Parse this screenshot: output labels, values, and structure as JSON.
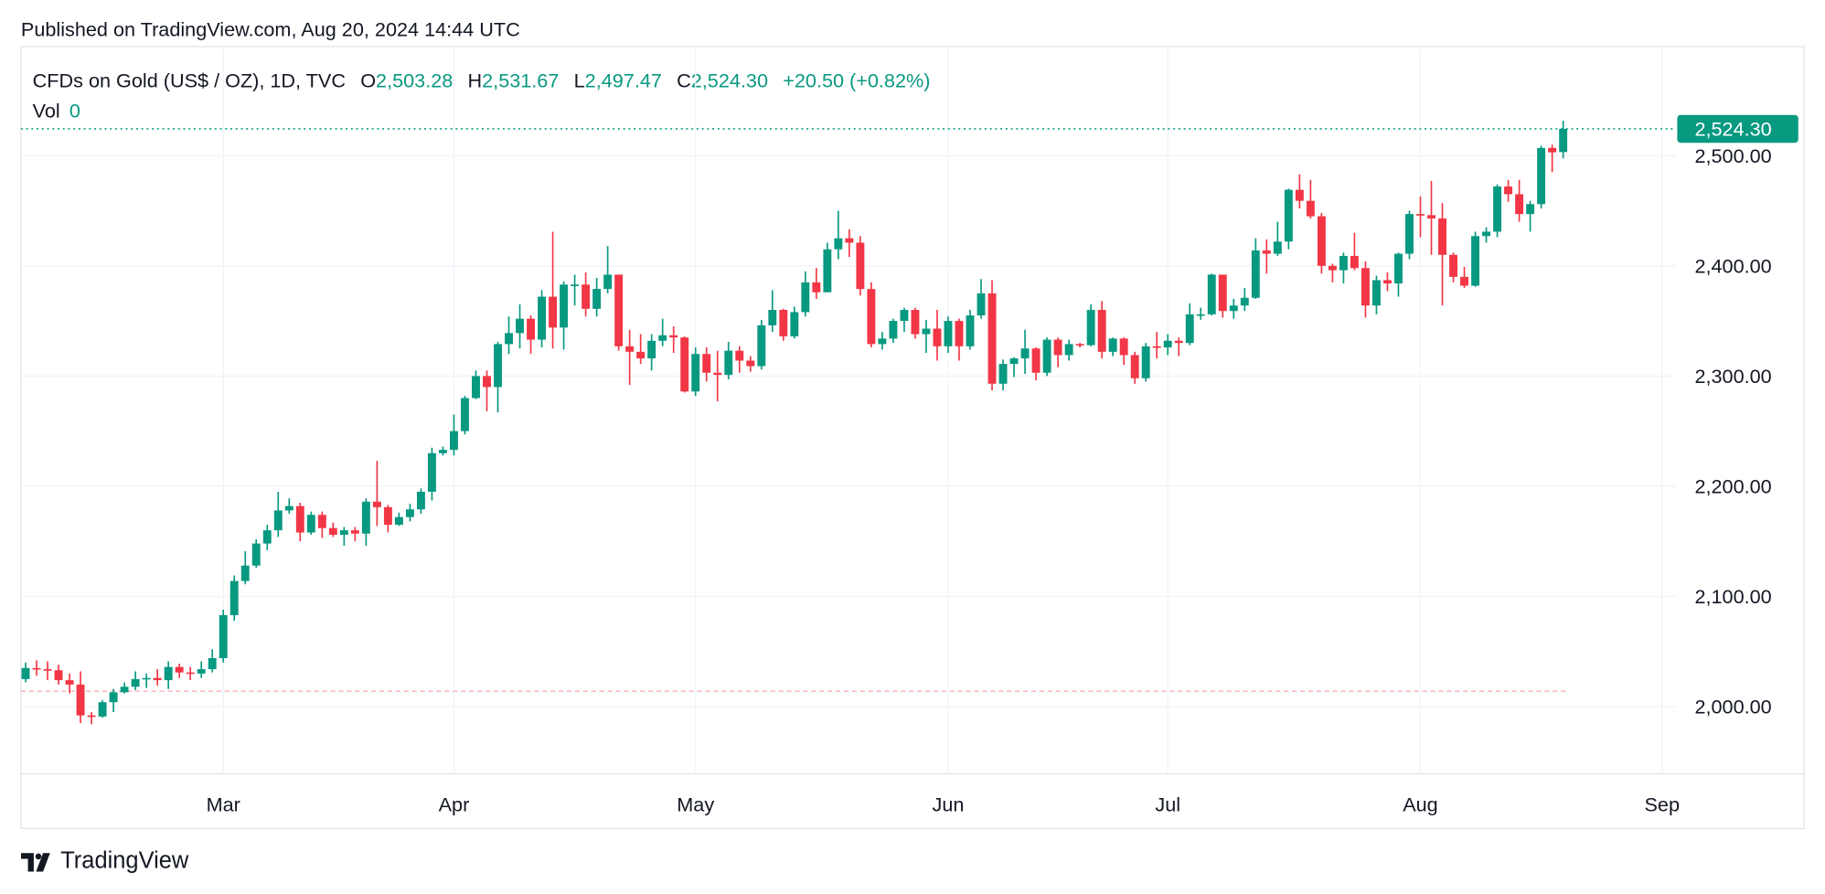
{
  "header": {
    "published": "Published on TradingView.com, Aug 20, 2024 14:44 UTC",
    "symbol": "CFDs on Gold (US$ / OZ), 1D, TVC",
    "o_label": "O",
    "o_value": "2,503.28",
    "h_label": "H",
    "h_value": "2,531.67",
    "l_label": "L",
    "l_value": "2,497.47",
    "c_label": "C",
    "c_value": "2,524.30",
    "change": "+20.50 (+0.82%)",
    "vol_label": "Vol",
    "vol_value": "0"
  },
  "price_label": "2,524.30",
  "logo_text": "TradingView",
  "colors": {
    "up": "#089981",
    "down": "#F23645",
    "grid": "#F0F3FA",
    "text": "#131722"
  },
  "chart_data": {
    "type": "candlestick",
    "ylim": [
      1939,
      2599
    ],
    "y_ticks": [
      "2,000.00",
      "2,100.00",
      "2,200.00",
      "2,300.00",
      "2,400.00",
      "2,500.00"
    ],
    "y_tick_values": [
      2000,
      2100,
      2200,
      2300,
      2400,
      2500
    ],
    "x_ticks": [
      {
        "label": "Mar",
        "date": "2024-03-01"
      },
      {
        "label": "Apr",
        "date": "2024-04-01"
      },
      {
        "label": "May",
        "date": "2024-05-01"
      },
      {
        "label": "Jun",
        "date": "2024-06-03"
      },
      {
        "label": "Jul",
        "date": "2024-07-01"
      },
      {
        "label": "Aug",
        "date": "2024-08-01"
      },
      {
        "label": "Sep",
        "date": "2024-09-02"
      }
    ],
    "last_price": 2524.3,
    "baseline_price": 2014,
    "grid": true,
    "candles_columns": [
      "date",
      "open",
      "high",
      "low",
      "close"
    ],
    "candles": [
      [
        "2024-02-06",
        2025,
        2040,
        2022,
        2035
      ],
      [
        "2024-02-07",
        2035,
        2042,
        2028,
        2034
      ],
      [
        "2024-02-08",
        2034,
        2041,
        2024,
        2033
      ],
      [
        "2024-02-09",
        2033,
        2038,
        2020,
        2024
      ],
      [
        "2024-02-12",
        2024,
        2030,
        2012,
        2020
      ],
      [
        "2024-02-13",
        2020,
        2032,
        1985,
        1992
      ],
      [
        "2024-02-14",
        1992,
        1995,
        1984,
        1991
      ],
      [
        "2024-02-15",
        1991,
        2006,
        1990,
        2004
      ],
      [
        "2024-02-16",
        2004,
        2016,
        1995,
        2013
      ],
      [
        "2024-02-19",
        2013,
        2022,
        2012,
        2018
      ],
      [
        "2024-02-20",
        2018,
        2032,
        2015,
        2025
      ],
      [
        "2024-02-21",
        2025,
        2030,
        2017,
        2026
      ],
      [
        "2024-02-22",
        2026,
        2034,
        2019,
        2024
      ],
      [
        "2024-02-23",
        2024,
        2041,
        2016,
        2036
      ],
      [
        "2024-02-26",
        2036,
        2039,
        2026,
        2031
      ],
      [
        "2024-02-27",
        2031,
        2036,
        2024,
        2030
      ],
      [
        "2024-02-28",
        2030,
        2041,
        2026,
        2034
      ],
      [
        "2024-02-29",
        2034,
        2052,
        2031,
        2044
      ],
      [
        "2024-03-01",
        2044,
        2088,
        2040,
        2083
      ],
      [
        "2024-03-04",
        2083,
        2119,
        2078,
        2114
      ],
      [
        "2024-03-05",
        2114,
        2141,
        2111,
        2128
      ],
      [
        "2024-03-06",
        2128,
        2152,
        2126,
        2148
      ],
      [
        "2024-03-07",
        2148,
        2165,
        2142,
        2160
      ],
      [
        "2024-03-08",
        2160,
        2195,
        2154,
        2178
      ],
      [
        "2024-03-11",
        2178,
        2189,
        2175,
        2182
      ],
      [
        "2024-03-12",
        2182,
        2185,
        2150,
        2158
      ],
      [
        "2024-03-13",
        2158,
        2177,
        2156,
        2174
      ],
      [
        "2024-03-14",
        2174,
        2177,
        2153,
        2162
      ],
      [
        "2024-03-15",
        2162,
        2167,
        2154,
        2156
      ],
      [
        "2024-03-18",
        2156,
        2163,
        2146,
        2160
      ],
      [
        "2024-03-19",
        2160,
        2163,
        2150,
        2157
      ],
      [
        "2024-03-20",
        2157,
        2189,
        2146,
        2186
      ],
      [
        "2024-03-21",
        2186,
        2223,
        2164,
        2181
      ],
      [
        "2024-03-22",
        2181,
        2183,
        2158,
        2165
      ],
      [
        "2024-03-25",
        2165,
        2176,
        2164,
        2172
      ],
      [
        "2024-03-26",
        2172,
        2184,
        2168,
        2179
      ],
      [
        "2024-03-27",
        2179,
        2198,
        2175,
        2195
      ],
      [
        "2024-03-28",
        2195,
        2235,
        2187,
        2230
      ],
      [
        "2024-03-29",
        2230,
        2236,
        2228,
        2233
      ],
      [
        "2024-04-01",
        2233,
        2265,
        2228,
        2250
      ],
      [
        "2024-04-02",
        2250,
        2282,
        2247,
        2280
      ],
      [
        "2024-04-03",
        2280,
        2305,
        2279,
        2300
      ],
      [
        "2024-04-04",
        2300,
        2305,
        2268,
        2290
      ],
      [
        "2024-04-05",
        2290,
        2331,
        2267,
        2329
      ],
      [
        "2024-04-08",
        2329,
        2354,
        2320,
        2339
      ],
      [
        "2024-04-09",
        2339,
        2365,
        2325,
        2352
      ],
      [
        "2024-04-10",
        2352,
        2355,
        2320,
        2333
      ],
      [
        "2024-04-11",
        2333,
        2378,
        2326,
        2372
      ],
      [
        "2024-04-12",
        2372,
        2431,
        2325,
        2344
      ],
      [
        "2024-04-15",
        2344,
        2386,
        2324,
        2383
      ],
      [
        "2024-04-16",
        2383,
        2392,
        2364,
        2383
      ],
      [
        "2024-04-17",
        2383,
        2394,
        2354,
        2361
      ],
      [
        "2024-04-18",
        2361,
        2389,
        2354,
        2379
      ],
      [
        "2024-04-19",
        2379,
        2418,
        2375,
        2392
      ],
      [
        "2024-04-22",
        2392,
        2392,
        2323,
        2327
      ],
      [
        "2024-04-23",
        2327,
        2342,
        2292,
        2322
      ],
      [
        "2024-04-24",
        2322,
        2338,
        2311,
        2316
      ],
      [
        "2024-04-25",
        2316,
        2338,
        2305,
        2332
      ],
      [
        "2024-04-26",
        2332,
        2352,
        2327,
        2337
      ],
      [
        "2024-04-29",
        2337,
        2345,
        2321,
        2335
      ],
      [
        "2024-04-30",
        2335,
        2336,
        2285,
        2286
      ],
      [
        "2024-05-01",
        2286,
        2326,
        2282,
        2320
      ],
      [
        "2024-05-02",
        2320,
        2326,
        2295,
        2303
      ],
      [
        "2024-05-03",
        2303,
        2323,
        2277,
        2301
      ],
      [
        "2024-05-06",
        2301,
        2331,
        2297,
        2323
      ],
      [
        "2024-05-07",
        2323,
        2327,
        2303,
        2314
      ],
      [
        "2024-05-08",
        2314,
        2318,
        2304,
        2309
      ],
      [
        "2024-05-09",
        2309,
        2351,
        2306,
        2346
      ],
      [
        "2024-05-10",
        2346,
        2378,
        2340,
        2360
      ],
      [
        "2024-05-13",
        2360,
        2361,
        2332,
        2336
      ],
      [
        "2024-05-14",
        2336,
        2363,
        2334,
        2358
      ],
      [
        "2024-05-15",
        2358,
        2395,
        2354,
        2385
      ],
      [
        "2024-05-16",
        2385,
        2398,
        2370,
        2376
      ],
      [
        "2024-05-17",
        2376,
        2421,
        2376,
        2415
      ],
      [
        "2024-05-20",
        2415,
        2450,
        2406,
        2425
      ],
      [
        "2024-05-21",
        2425,
        2433,
        2408,
        2421
      ],
      [
        "2024-05-22",
        2421,
        2427,
        2373,
        2379
      ],
      [
        "2024-05-23",
        2379,
        2385,
        2326,
        2329
      ],
      [
        "2024-05-24",
        2329,
        2340,
        2324,
        2334
      ],
      [
        "2024-05-27",
        2334,
        2352,
        2330,
        2350
      ],
      [
        "2024-05-28",
        2350,
        2362,
        2340,
        2360
      ],
      [
        "2024-05-29",
        2360,
        2362,
        2334,
        2338
      ],
      [
        "2024-05-30",
        2338,
        2351,
        2321,
        2343
      ],
      [
        "2024-05-31",
        2343,
        2360,
        2314,
        2327
      ],
      [
        "2024-06-03",
        2327,
        2354,
        2321,
        2350
      ],
      [
        "2024-06-04",
        2350,
        2352,
        2314,
        2327
      ],
      [
        "2024-06-05",
        2327,
        2360,
        2324,
        2355
      ],
      [
        "2024-06-06",
        2355,
        2388,
        2352,
        2375
      ],
      [
        "2024-06-07",
        2375,
        2387,
        2287,
        2293
      ],
      [
        "2024-06-10",
        2293,
        2315,
        2287,
        2311
      ],
      [
        "2024-06-11",
        2311,
        2317,
        2299,
        2316
      ],
      [
        "2024-06-12",
        2316,
        2342,
        2302,
        2325
      ],
      [
        "2024-06-13",
        2325,
        2326,
        2296,
        2303
      ],
      [
        "2024-06-14",
        2303,
        2335,
        2300,
        2333
      ],
      [
        "2024-06-17",
        2333,
        2335,
        2308,
        2319
      ],
      [
        "2024-06-18",
        2319,
        2333,
        2314,
        2329
      ],
      [
        "2024-06-19",
        2329,
        2330,
        2326,
        2328
      ],
      [
        "2024-06-20",
        2328,
        2365,
        2327,
        2360
      ],
      [
        "2024-06-21",
        2360,
        2368,
        2316,
        2322
      ],
      [
        "2024-06-24",
        2322,
        2335,
        2318,
        2334
      ],
      [
        "2024-06-25",
        2334,
        2335,
        2310,
        2319
      ],
      [
        "2024-06-26",
        2319,
        2322,
        2293,
        2298
      ],
      [
        "2024-06-27",
        2298,
        2330,
        2295,
        2327
      ],
      [
        "2024-06-28",
        2327,
        2340,
        2316,
        2326
      ],
      [
        "2024-07-01",
        2326,
        2338,
        2319,
        2332
      ],
      [
        "2024-07-02",
        2332,
        2335,
        2318,
        2330
      ],
      [
        "2024-07-03",
        2330,
        2366,
        2328,
        2356
      ],
      [
        "2024-07-04",
        2356,
        2362,
        2351,
        2356
      ],
      [
        "2024-07-05",
        2356,
        2393,
        2355,
        2392
      ],
      [
        "2024-07-08",
        2392,
        2392,
        2353,
        2359
      ],
      [
        "2024-07-09",
        2359,
        2370,
        2352,
        2364
      ],
      [
        "2024-07-10",
        2364,
        2380,
        2359,
        2371
      ],
      [
        "2024-07-11",
        2371,
        2425,
        2370,
        2414
      ],
      [
        "2024-07-12",
        2414,
        2424,
        2393,
        2411
      ],
      [
        "2024-07-15",
        2411,
        2440,
        2409,
        2422
      ],
      [
        "2024-07-16",
        2422,
        2470,
        2415,
        2469
      ],
      [
        "2024-07-17",
        2469,
        2483,
        2452,
        2459
      ],
      [
        "2024-07-18",
        2459,
        2478,
        2443,
        2445
      ],
      [
        "2024-07-19",
        2445,
        2448,
        2393,
        2400
      ],
      [
        "2024-07-22",
        2400,
        2402,
        2385,
        2396
      ],
      [
        "2024-07-23",
        2396,
        2412,
        2384,
        2409
      ],
      [
        "2024-07-24",
        2409,
        2430,
        2396,
        2398
      ],
      [
        "2024-07-25",
        2398,
        2404,
        2353,
        2364
      ],
      [
        "2024-07-26",
        2364,
        2391,
        2356,
        2387
      ],
      [
        "2024-07-29",
        2387,
        2394,
        2377,
        2384
      ],
      [
        "2024-07-30",
        2384,
        2412,
        2372,
        2411
      ],
      [
        "2024-07-31",
        2411,
        2450,
        2406,
        2447
      ],
      [
        "2024-08-01",
        2447,
        2463,
        2426,
        2446
      ],
      [
        "2024-08-02",
        2446,
        2477,
        2410,
        2443
      ],
      [
        "2024-08-05",
        2443,
        2457,
        2364,
        2410
      ],
      [
        "2024-08-06",
        2410,
        2412,
        2385,
        2390
      ],
      [
        "2024-08-07",
        2390,
        2399,
        2380,
        2382
      ],
      [
        "2024-08-08",
        2382,
        2431,
        2381,
        2427
      ],
      [
        "2024-08-09",
        2427,
        2435,
        2421,
        2431
      ],
      [
        "2024-08-12",
        2431,
        2474,
        2426,
        2472
      ],
      [
        "2024-08-13",
        2472,
        2478,
        2458,
        2465
      ],
      [
        "2024-08-14",
        2465,
        2478,
        2440,
        2447
      ],
      [
        "2024-08-15",
        2447,
        2459,
        2431,
        2456
      ],
      [
        "2024-08-16",
        2456,
        2509,
        2452,
        2507
      ],
      [
        "2024-08-19",
        2507,
        2510,
        2485,
        2503
      ],
      [
        "2024-08-20",
        2503.28,
        2531.67,
        2497.47,
        2524.3
      ]
    ]
  }
}
